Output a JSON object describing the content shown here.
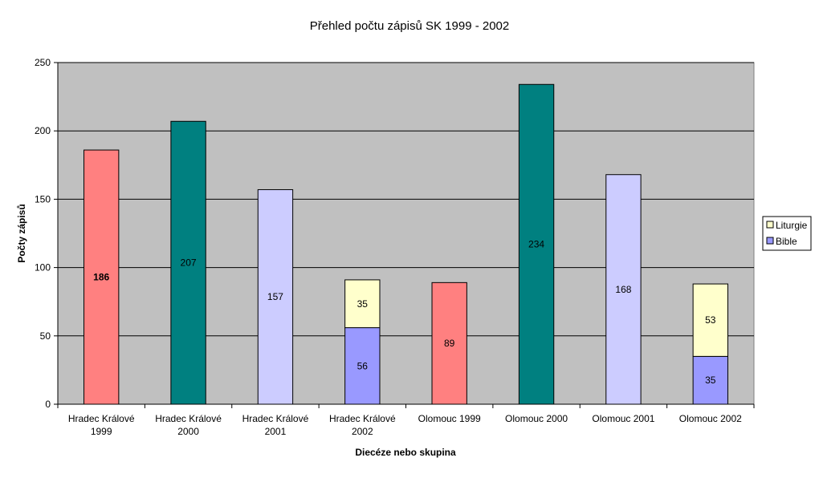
{
  "chart_data": {
    "type": "bar",
    "stacked": true,
    "title": "Přehled počtu zápisů SK 1999 - 2002",
    "xlabel": "Diecéze nebo skupina",
    "ylabel": "Počty zápisů",
    "ylim": [
      0,
      250
    ],
    "yticks": [
      0,
      50,
      100,
      150,
      200,
      250
    ],
    "grid": true,
    "legend_position": "right",
    "plot_background": "#c0c0c0",
    "categories": [
      [
        "Hradec Králové",
        "1999"
      ],
      [
        "Hradec Králové",
        "2000"
      ],
      [
        "Hradec Králové",
        "2001"
      ],
      [
        "Hradec Králové",
        "2002"
      ],
      [
        "Olomouc 1999"
      ],
      [
        "Olomouc 2000"
      ],
      [
        "Olomouc 2001"
      ],
      [
        "Olomouc 2002"
      ]
    ],
    "bars": [
      {
        "segments": [
          {
            "value": 186,
            "color": "#ff8080",
            "label": "186",
            "bold": true
          }
        ]
      },
      {
        "segments": [
          {
            "value": 207,
            "color": "#008080",
            "label": "207"
          }
        ]
      },
      {
        "segments": [
          {
            "value": 157,
            "color": "#ccccff",
            "label": "157"
          }
        ]
      },
      {
        "segments": [
          {
            "value": 56,
            "color": "#9999ff",
            "label": "56",
            "series": "Bible"
          },
          {
            "value": 35,
            "color": "#ffffcc",
            "label": "35",
            "series": "Liturgie"
          }
        ]
      },
      {
        "segments": [
          {
            "value": 89,
            "color": "#ff8080",
            "label": "89"
          }
        ]
      },
      {
        "segments": [
          {
            "value": 234,
            "color": "#008080",
            "label": "234"
          }
        ]
      },
      {
        "segments": [
          {
            "value": 168,
            "color": "#ccccff",
            "label": "168"
          }
        ]
      },
      {
        "segments": [
          {
            "value": 35,
            "color": "#9999ff",
            "label": "35",
            "series": "Bible"
          },
          {
            "value": 53,
            "color": "#ffffcc",
            "label": "53",
            "series": "Liturgie"
          }
        ]
      }
    ],
    "legend": [
      {
        "name": "Liturgie",
        "color": "#ffffcc"
      },
      {
        "name": "Bible",
        "color": "#9999ff"
      }
    ]
  }
}
